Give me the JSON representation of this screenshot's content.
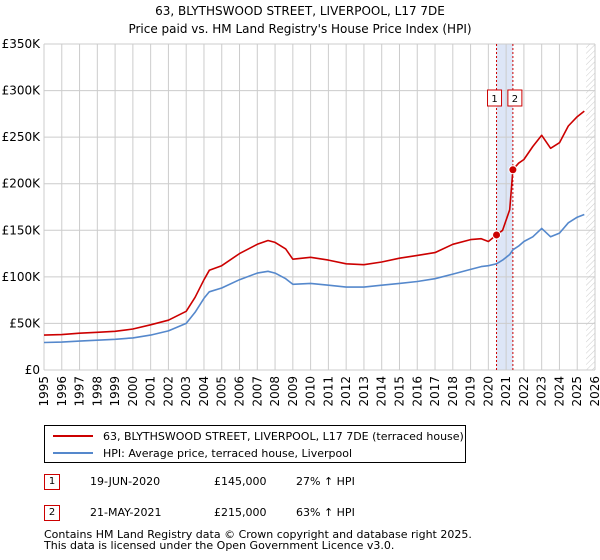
{
  "chart_data": {
    "type": "line",
    "title": "63, BLYTHSWOOD STREET, LIVERPOOL, L17 7DE",
    "subtitle": "Price paid vs. HM Land Registry's House Price Index (HPI)",
    "xlim": [
      1995,
      2026
    ],
    "ylim": [
      0,
      350000
    ],
    "y_ticks": [
      0,
      50000,
      100000,
      150000,
      200000,
      250000,
      300000,
      350000
    ],
    "y_tick_labels": [
      "£0",
      "£50K",
      "£100K",
      "£150K",
      "£200K",
      "£250K",
      "£300K",
      "£350K"
    ],
    "x_ticks": [
      1995,
      1996,
      1997,
      1998,
      1999,
      2000,
      2001,
      2002,
      2003,
      2004,
      2005,
      2006,
      2007,
      2008,
      2009,
      2010,
      2011,
      2012,
      2013,
      2014,
      2015,
      2016,
      2017,
      2018,
      2019,
      2020,
      2021,
      2022,
      2023,
      2024,
      2025,
      2026
    ],
    "x_tick_labels": [
      "1995",
      "1996",
      "1997",
      "1998",
      "1999",
      "2000",
      "2001",
      "2002",
      "2003",
      "2004",
      "2005",
      "2006",
      "2007",
      "2008",
      "2009",
      "2010",
      "2011",
      "2012",
      "2013",
      "2014",
      "2015",
      "2016",
      "2017",
      "2018",
      "2019",
      "2020",
      "2021",
      "2022",
      "2023",
      "2024",
      "2025",
      "2026"
    ],
    "grid": true,
    "series": [
      {
        "name": "63, BLYTHSWOOD STREET, LIVERPOOL, L17 7DE (terraced house)",
        "color": "#cc0000",
        "points": [
          [
            1995,
            37500
          ],
          [
            1996,
            38000
          ],
          [
            1997,
            39500
          ],
          [
            1998,
            40500
          ],
          [
            1999,
            41500
          ],
          [
            2000,
            44000
          ],
          [
            2001,
            48500
          ],
          [
            2002,
            53500
          ],
          [
            2003,
            63000
          ],
          [
            2003.5,
            78000
          ],
          [
            2004,
            97000
          ],
          [
            2004.3,
            107000
          ],
          [
            2005,
            112000
          ],
          [
            2006,
            125000
          ],
          [
            2007,
            135000
          ],
          [
            2007.6,
            139000
          ],
          [
            2008,
            137000
          ],
          [
            2008.6,
            130000
          ],
          [
            2009,
            119000
          ],
          [
            2010,
            121000
          ],
          [
            2011,
            118000
          ],
          [
            2012,
            114000
          ],
          [
            2013,
            113000
          ],
          [
            2014,
            116000
          ],
          [
            2015,
            120000
          ],
          [
            2016,
            123000
          ],
          [
            2017,
            126000
          ],
          [
            2018,
            135000
          ],
          [
            2019,
            140000
          ],
          [
            2019.6,
            141000
          ],
          [
            2020,
            138000
          ],
          [
            2020.46,
            145000
          ],
          [
            2020.8,
            150000
          ],
          [
            2021.2,
            172000
          ],
          [
            2021.38,
            215000
          ],
          [
            2021.7,
            222000
          ],
          [
            2022,
            226000
          ],
          [
            2022.5,
            240000
          ],
          [
            2023,
            252000
          ],
          [
            2023.5,
            238000
          ],
          [
            2024,
            244000
          ],
          [
            2024.5,
            262000
          ],
          [
            2025,
            272000
          ],
          [
            2025.4,
            278000
          ]
        ]
      },
      {
        "name": "HPI: Average price, terraced house, Liverpool",
        "color": "#5588cc",
        "points": [
          [
            1995,
            29500
          ],
          [
            1996,
            30000
          ],
          [
            1997,
            31000
          ],
          [
            1998,
            32000
          ],
          [
            1999,
            33000
          ],
          [
            2000,
            34500
          ],
          [
            2001,
            37500
          ],
          [
            2002,
            42000
          ],
          [
            2003,
            50000
          ],
          [
            2003.5,
            62000
          ],
          [
            2004,
            77000
          ],
          [
            2004.3,
            84000
          ],
          [
            2005,
            88000
          ],
          [
            2006,
            97000
          ],
          [
            2007,
            104000
          ],
          [
            2007.6,
            106000
          ],
          [
            2008,
            104000
          ],
          [
            2008.6,
            98000
          ],
          [
            2009,
            92000
          ],
          [
            2010,
            93000
          ],
          [
            2011,
            91000
          ],
          [
            2012,
            89000
          ],
          [
            2013,
            89000
          ],
          [
            2014,
            91000
          ],
          [
            2015,
            93000
          ],
          [
            2016,
            95000
          ],
          [
            2017,
            98000
          ],
          [
            2018,
            103000
          ],
          [
            2019,
            108000
          ],
          [
            2019.6,
            111000
          ],
          [
            2020,
            112000
          ],
          [
            2020.46,
            114000
          ],
          [
            2020.8,
            118000
          ],
          [
            2021.2,
            124000
          ],
          [
            2021.38,
            129000
          ],
          [
            2021.7,
            133000
          ],
          [
            2022,
            138000
          ],
          [
            2022.5,
            143000
          ],
          [
            2023,
            152000
          ],
          [
            2023.5,
            143000
          ],
          [
            2024,
            147000
          ],
          [
            2024.5,
            158000
          ],
          [
            2025,
            164000
          ],
          [
            2025.4,
            167000
          ]
        ]
      }
    ],
    "sales": [
      {
        "label": "1",
        "date": "19-JUN-2020",
        "year": 2020.46,
        "value": 145000,
        "price": "£145,000",
        "hpi_change": "27% ↑ HPI"
      },
      {
        "label": "2",
        "date": "21-MAY-2021",
        "year": 2021.38,
        "value": 215000,
        "price": "£215,000",
        "hpi_change": "63% ↑ HPI"
      }
    ],
    "forecast_start": 2025.5,
    "colors": {
      "red": "#cc0000",
      "blue": "#5588cc",
      "band": "#dde6f7",
      "grid": "#cccccc",
      "background": "#ffffff"
    }
  },
  "legend": {
    "line1": "63, BLYTHSWOOD STREET, LIVERPOOL, L17 7DE (terraced house)",
    "line2": "HPI: Average price, terraced house, Liverpool"
  },
  "footer": {
    "line1": "Contains HM Land Registry data © Crown copyright and database right 2025.",
    "line2": "This data is licensed under the Open Government Licence v3.0."
  }
}
